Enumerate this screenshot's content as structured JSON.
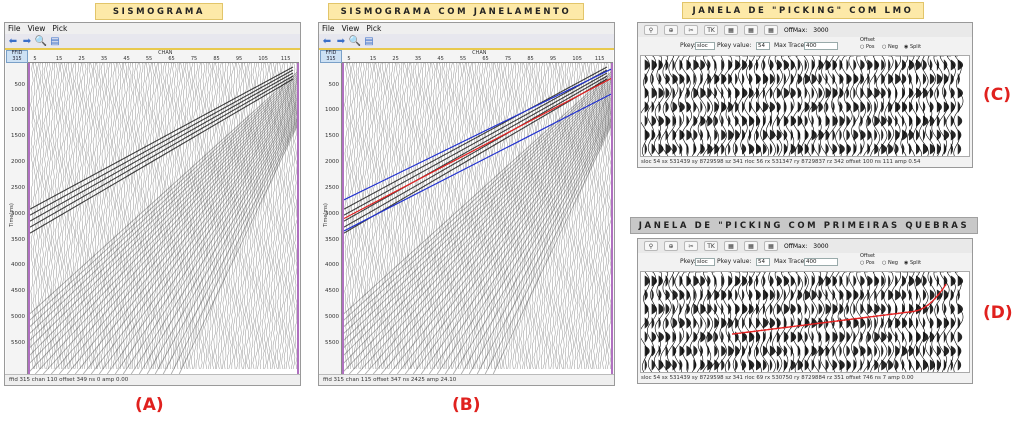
{
  "banners": {
    "a": "SISMOGRAMA",
    "b": "SISMOGRAMA COM JANELAMENTO",
    "c": "JANELA DE \"PICKING\" COM LMO",
    "d": "JANELA DE \"PICKING COM PRIMEIRAS QUEBRAS"
  },
  "labels": {
    "a": "(A)",
    "b": "(B)",
    "c": "(C)",
    "d": "(D)"
  },
  "seis_windows": {
    "menu": [
      "File",
      "View",
      "Pick"
    ],
    "corner_top": "FFID",
    "corner_value": "315",
    "chan_label": "CHAN",
    "time_label": "Time(ms)",
    "x_ticks": [
      "5",
      "15",
      "25",
      "35",
      "45",
      "55",
      "65",
      "75",
      "85",
      "95",
      "105",
      "115"
    ],
    "y_ticks": [
      "500",
      "1000",
      "1500",
      "2000",
      "2500",
      "3000",
      "3500",
      "4000",
      "4500",
      "5000",
      "5500"
    ],
    "status_a": "ffid  315 chan   110 offset   349 ns  0 amp  0.00",
    "status_b": "ffid  315 chan   115 offset   347 ns  2425 amp 24.10"
  },
  "picking_windows": {
    "toolbar": [
      "⚲",
      "⊕",
      "✂",
      "TK",
      "▦",
      "▦",
      "▦"
    ],
    "offmax_label": "OffMax:",
    "offmax_value": "3000",
    "pkey_label": "Pkey:",
    "pkey_value": "sloc",
    "pkey_value_label": "Pkey value:",
    "pkey_value_value": "54",
    "max_traces_label": "Max Traces",
    "max_traces_value": "400",
    "offset_group": "Offset",
    "offset_options": [
      "Pos",
      "Neg",
      "Split"
    ],
    "offset_selected": "Split",
    "status_c": "sloc    54  sx  531439  sy  8729598  sz    341  rloc    56  rx 531347  ry 8729837  rz    342  offset   100  ns   111  amp  0.54",
    "status_d": "sloc    54  sx  531439  sy  8729598  sz    341  rloc    69  rx 530750  ry 8729884  rz    351  offset   746  ns   7  amp  0.00"
  },
  "colors": {
    "banner": "#fde9a8",
    "label_red": "#e0211e",
    "pick_red": "#e32020",
    "window_blue": "#2030d0"
  }
}
